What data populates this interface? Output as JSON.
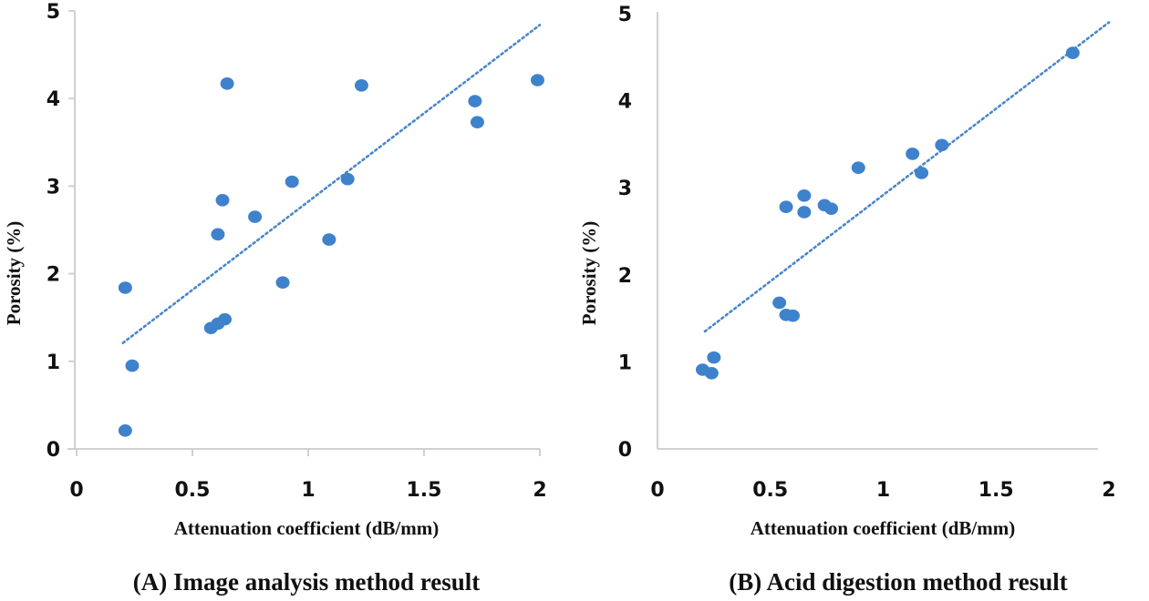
{
  "chart_data": [
    {
      "type": "scatter",
      "caption": "(A) Image analysis method result",
      "xlabel": "Attenuation coefficient (dB/mm)",
      "ylabel": "Porosity (%)",
      "xlim": [
        0,
        2
      ],
      "ylim": [
        0,
        5
      ],
      "xticks": [
        "0",
        "0.5",
        "1",
        "1.5",
        "2"
      ],
      "yticks": [
        "0",
        "1",
        "2",
        "3",
        "4",
        "5"
      ],
      "x_tick_marks": true,
      "grid": false,
      "marker_color": "#3f82cc",
      "trendline": {
        "style": "dotted",
        "color": "#4a86c8",
        "x": [
          0.2,
          2.0
        ],
        "y": [
          1.21,
          4.84
        ]
      },
      "points": [
        {
          "x": 0.21,
          "y": 0.21
        },
        {
          "x": 0.24,
          "y": 0.95
        },
        {
          "x": 0.21,
          "y": 1.84
        },
        {
          "x": 0.58,
          "y": 1.38
        },
        {
          "x": 0.61,
          "y": 1.43
        },
        {
          "x": 0.64,
          "y": 1.48
        },
        {
          "x": 0.61,
          "y": 2.45
        },
        {
          "x": 0.63,
          "y": 2.84
        },
        {
          "x": 0.65,
          "y": 4.17
        },
        {
          "x": 0.77,
          "y": 2.65
        },
        {
          "x": 0.89,
          "y": 1.9
        },
        {
          "x": 0.93,
          "y": 3.05
        },
        {
          "x": 1.09,
          "y": 2.39
        },
        {
          "x": 1.17,
          "y": 3.08
        },
        {
          "x": 1.23,
          "y": 4.15
        },
        {
          "x": 1.72,
          "y": 3.97
        },
        {
          "x": 1.73,
          "y": 3.73
        },
        {
          "x": 1.99,
          "y": 4.21
        }
      ]
    },
    {
      "type": "scatter",
      "caption": "(B) Acid digestion method result",
      "xlabel": "Attenuation coefficient (dB/mm)",
      "ylabel": "Porosity (%)",
      "xlim": [
        0,
        2
      ],
      "ylim": [
        0,
        5
      ],
      "xticks": [
        "0",
        "0.5",
        "1",
        "1.5",
        "2"
      ],
      "yticks": [
        "0",
        "1",
        "2",
        "3",
        "4",
        "5"
      ],
      "x_tick_marks": false,
      "grid": false,
      "marker_color": "#3f82cc",
      "trendline": {
        "style": "dotted",
        "color": "#4a86c8",
        "x": [
          0.21,
          2.0
        ],
        "y": [
          1.35,
          4.9
        ]
      },
      "points": [
        {
          "x": 0.2,
          "y": 0.91
        },
        {
          "x": 0.24,
          "y": 0.87
        },
        {
          "x": 0.25,
          "y": 1.05
        },
        {
          "x": 0.54,
          "y": 1.68
        },
        {
          "x": 0.57,
          "y": 1.54
        },
        {
          "x": 0.6,
          "y": 1.53
        },
        {
          "x": 0.57,
          "y": 2.78
        },
        {
          "x": 0.65,
          "y": 2.91
        },
        {
          "x": 0.65,
          "y": 2.72
        },
        {
          "x": 0.74,
          "y": 2.8
        },
        {
          "x": 0.77,
          "y": 2.76
        },
        {
          "x": 0.89,
          "y": 3.23
        },
        {
          "x": 1.13,
          "y": 3.39
        },
        {
          "x": 1.17,
          "y": 3.17
        },
        {
          "x": 1.26,
          "y": 3.49
        },
        {
          "x": 1.84,
          "y": 4.55
        }
      ]
    }
  ]
}
